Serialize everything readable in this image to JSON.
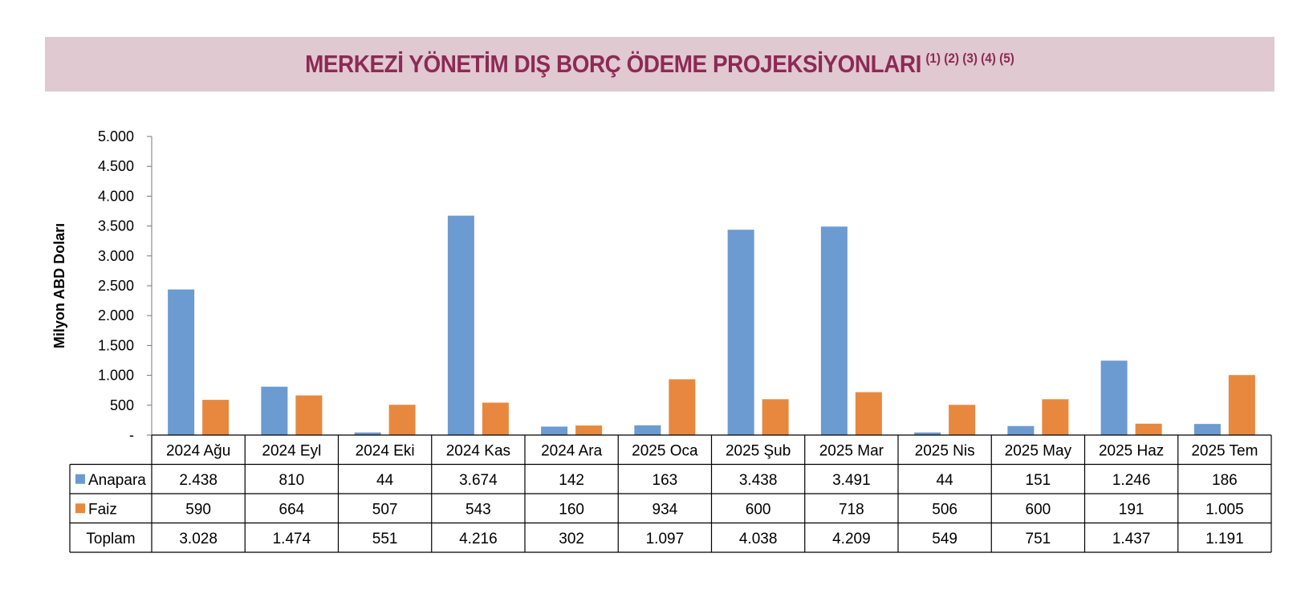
{
  "title": "MERKEZİ YÖNETİM DIŞ BORÇ ÖDEME PROJEKSİYONLARI",
  "title_notes": "(1) (2) (3) (4) (5)",
  "colors": {
    "anapara": "#6b9bd1",
    "faiz": "#e8883e",
    "title_bg": "#e0c9d0",
    "title_text": "#8c2a55"
  },
  "chart_data": {
    "type": "bar",
    "ylabel": "Milyon ABD Doları",
    "ylim": [
      0,
      5000
    ],
    "y_ticks": [
      0,
      500,
      1000,
      1500,
      2000,
      2500,
      3000,
      3500,
      4000,
      4500,
      5000
    ],
    "y_tick_labels": [
      "-",
      "500",
      "1.000",
      "1.500",
      "2.000",
      "2.500",
      "3.000",
      "3.500",
      "4.000",
      "4.500",
      "5.000"
    ],
    "categories": [
      "2024 Ağu",
      "2024 Eyl",
      "2024 Eki",
      "2024 Kas",
      "2024 Ara",
      "2025 Oca",
      "2025 Şub",
      "2025 Mar",
      "2025 Nis",
      "2025 May",
      "2025 Haz",
      "2025 Tem"
    ],
    "series": [
      {
        "name": "Anapara",
        "values": [
          2438,
          810,
          44,
          3674,
          142,
          163,
          3438,
          3491,
          44,
          151,
          1246,
          186
        ],
        "labels": [
          "2.438",
          "810",
          "44",
          "3.674",
          "142",
          "163",
          "3.438",
          "3.491",
          "44",
          "151",
          "1.246",
          "186"
        ]
      },
      {
        "name": "Faiz",
        "values": [
          590,
          664,
          507,
          543,
          160,
          934,
          600,
          718,
          506,
          600,
          191,
          1005
        ],
        "labels": [
          "590",
          "664",
          "507",
          "543",
          "160",
          "934",
          "600",
          "718",
          "506",
          "600",
          "191",
          "1.005"
        ]
      }
    ],
    "total_row": {
      "name": "Toplam",
      "labels": [
        "3.028",
        "1.474",
        "551",
        "4.216",
        "302",
        "1.097",
        "4.038",
        "4.209",
        "549",
        "751",
        "1.437",
        "1.191"
      ]
    },
    "grid": false,
    "legend": "data-table"
  }
}
